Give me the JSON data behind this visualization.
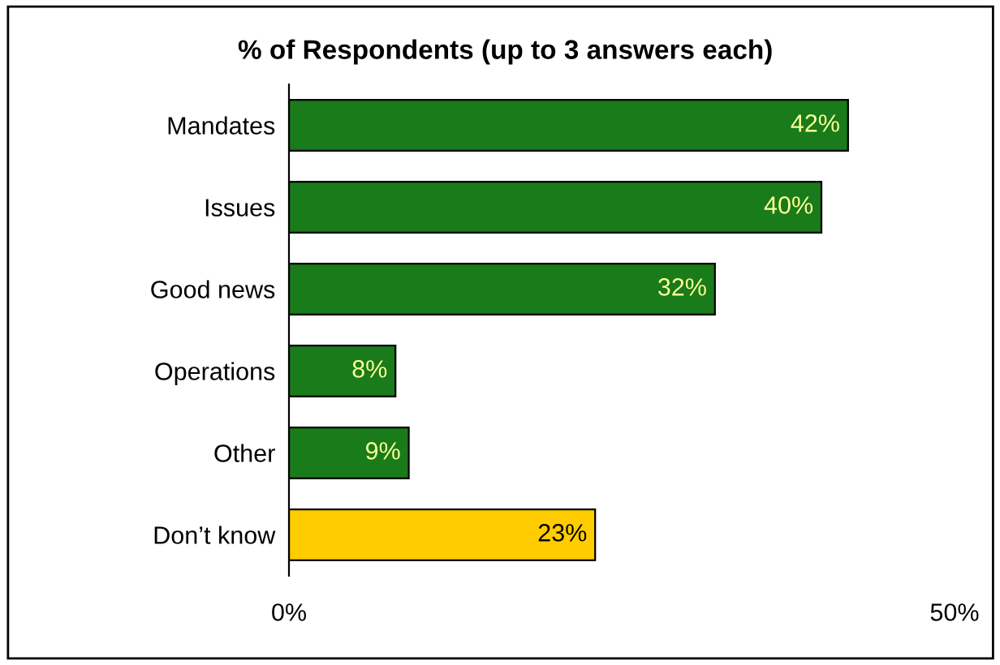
{
  "chart_data": {
    "type": "bar",
    "orientation": "horizontal",
    "title": "% of Respondents (up to 3 answers each)",
    "categories": [
      "Mandates",
      "Issues",
      "Good news",
      "Operations",
      "Other",
      "Don’t know"
    ],
    "values": [
      42,
      40,
      32,
      8,
      9,
      23
    ],
    "colors": [
      "#197b19",
      "#197b19",
      "#197b19",
      "#197b19",
      "#197b19",
      "#ffcc00"
    ],
    "value_labels": [
      "42%",
      "40%",
      "32%",
      "8%",
      "9%",
      "23%"
    ],
    "xlim": [
      0,
      50
    ],
    "xticks": [
      {
        "value": 0,
        "label": "0%"
      },
      {
        "value": 50,
        "label": "50%"
      }
    ],
    "grid": false,
    "legend": false
  }
}
